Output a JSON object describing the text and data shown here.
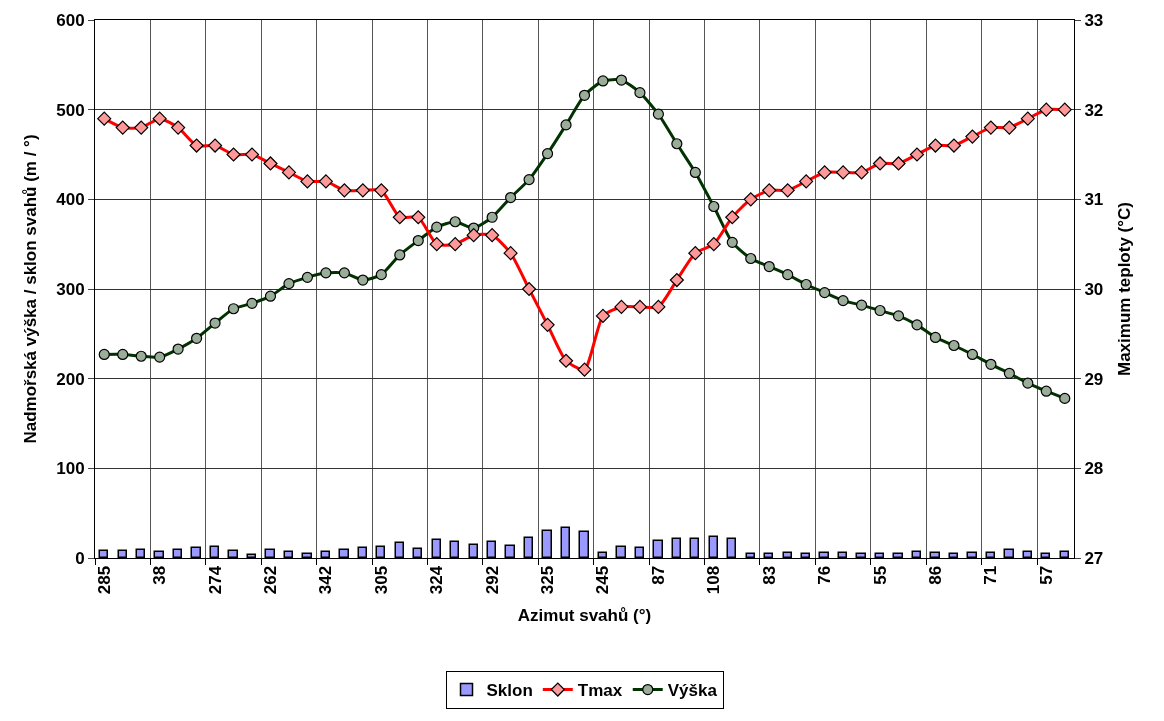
{
  "chart_data": {
    "type": "bar",
    "xlabel": "Azimut svahů (°)",
    "ylabel": "Nadmořská výška / sklon svahů (m / °)",
    "y2label": "Maximum teploty (°C)",
    "categories": [
      "285",
      null,
      null,
      "38",
      null,
      null,
      "274",
      null,
      null,
      "262",
      null,
      null,
      "342",
      null,
      null,
      "305",
      null,
      null,
      "324",
      null,
      null,
      "292",
      null,
      null,
      "325",
      null,
      null,
      "245",
      null,
      null,
      "87",
      null,
      null,
      "108",
      null,
      null,
      "83",
      null,
      null,
      "76",
      null,
      null,
      "55",
      null,
      null,
      "86",
      null,
      null,
      "71",
      null,
      null,
      "57",
      null
    ],
    "series": [
      {
        "name": "Sklon",
        "color": "#9999ff",
        "values": [
          8,
          8,
          9,
          7,
          9,
          11,
          12,
          8,
          3,
          9,
          7,
          5,
          7,
          9,
          11,
          12,
          17,
          10,
          20,
          18,
          14,
          18,
          13,
          22,
          30,
          33,
          29,
          6,
          12,
          11,
          19,
          21,
          21,
          23,
          21,
          5,
          4,
          6,
          5,
          6,
          6,
          5,
          5,
          5,
          7,
          6,
          5,
          6,
          6,
          9,
          7,
          5,
          7
        ]
      },
      {
        "name": "Tmax",
        "type": "line",
        "axis": "y2",
        "color": "#ff0000",
        "marker": "diamond",
        "values": [
          31.9,
          31.8,
          31.8,
          31.9,
          31.8,
          31.6,
          31.6,
          31.5,
          31.5,
          31.4,
          31.3,
          31.2,
          31.2,
          31.1,
          31.1,
          31.1,
          30.8,
          30.8,
          30.5,
          30.5,
          30.6,
          30.6,
          30.4,
          30.0,
          29.6,
          29.2,
          29.1,
          29.7,
          29.8,
          29.8,
          29.8,
          30.1,
          30.4,
          30.5,
          30.8,
          31.0,
          31.1,
          31.1,
          31.2,
          31.3,
          31.3,
          31.3,
          31.4,
          31.4,
          31.5,
          31.6,
          31.6,
          31.7,
          31.8,
          31.8,
          31.9,
          32.0,
          32.0
        ]
      },
      {
        "name": "Výška",
        "type": "line",
        "color": "#003300",
        "marker": "circle",
        "values": [
          227,
          227,
          225,
          224,
          233,
          245,
          262,
          278,
          284,
          292,
          306,
          313,
          318,
          318,
          310,
          316,
          338,
          354,
          369,
          375,
          368,
          380,
          402,
          422,
          451,
          483,
          516,
          532,
          533,
          519,
          495,
          462,
          430,
          392,
          352,
          334,
          325,
          316,
          305,
          296,
          287,
          282,
          276,
          270,
          260,
          246,
          237,
          227,
          216,
          206,
          195,
          186,
          178
        ]
      }
    ],
    "ylim": [
      0,
      600
    ],
    "yticks": [
      0,
      100,
      200,
      300,
      400,
      500,
      600
    ],
    "y2lim": [
      27,
      33
    ],
    "y2ticks": [
      27,
      28,
      29,
      30,
      31,
      32,
      33
    ],
    "grid": true,
    "legend": "bottom"
  }
}
